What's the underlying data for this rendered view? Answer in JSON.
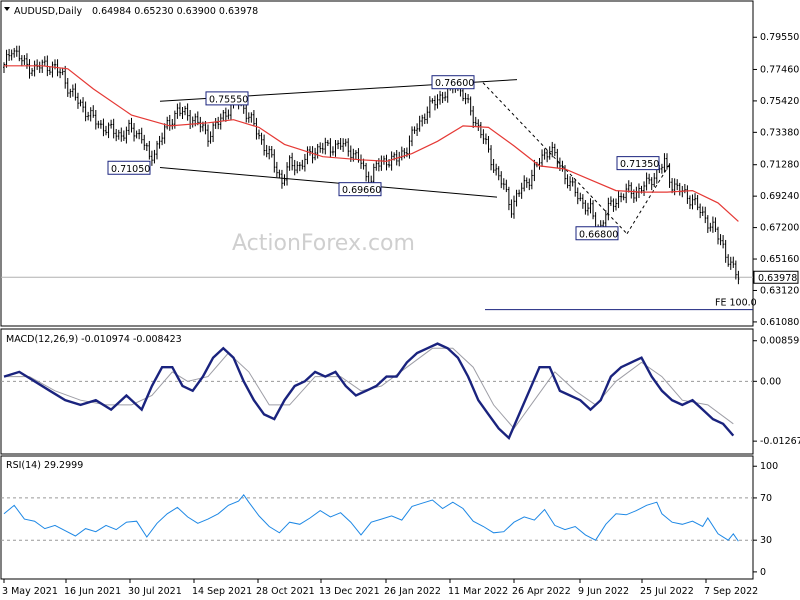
{
  "header": {
    "symbol": "AUDUSD,Daily",
    "ohlc": "0.64984 0.65230 0.63900 0.63978"
  },
  "watermark": "ActionForex.com",
  "colors": {
    "candles": "#000000",
    "ma": "#e53935",
    "macd": "#1a237e",
    "signal": "#9e9ea6",
    "rsi": "#1e88e5",
    "annotation": "#1a237e"
  },
  "chart_data": {
    "type": "candlestick",
    "x_ticks": [
      "3 May 2021",
      "16 Jun 2021",
      "30 Jul 2021",
      "14 Sep 2021",
      "28 Oct 2021",
      "13 Dec 2021",
      "26 Jan 2022",
      "11 Mar 2022",
      "26 Apr 2022",
      "9 Jun 2022",
      "25 Jul 2022",
      "7 Sep 2022"
    ],
    "price_ticks": [
      "0.79550",
      "0.77460",
      "0.75420",
      "0.73380",
      "0.71280",
      "0.69240",
      "0.67200",
      "0.65160",
      "0.63120",
      "0.61080"
    ],
    "ylim": [
      0.6088,
      0.8015
    ],
    "last_price": "0.63978",
    "price_path": [
      [
        0,
        0.776
      ],
      [
        3,
        0.789
      ],
      [
        8,
        0.778
      ],
      [
        12,
        0.775
      ],
      [
        16,
        0.778
      ],
      [
        20,
        0.775
      ],
      [
        23,
        0.771
      ],
      [
        26,
        0.76
      ],
      [
        30,
        0.752
      ],
      [
        34,
        0.744
      ],
      [
        38,
        0.738
      ],
      [
        42,
        0.735
      ],
      [
        46,
        0.732
      ],
      [
        50,
        0.736
      ],
      [
        54,
        0.731
      ],
      [
        57,
        0.716
      ],
      [
        60,
        0.725
      ],
      [
        64,
        0.738
      ],
      [
        68,
        0.748
      ],
      [
        72,
        0.745
      ],
      [
        76,
        0.74
      ],
      [
        80,
        0.732
      ],
      [
        84,
        0.74
      ],
      [
        88,
        0.749
      ],
      [
        91,
        0.755
      ],
      [
        94,
        0.75
      ],
      [
        98,
        0.738
      ],
      [
        102,
        0.725
      ],
      [
        106,
        0.713
      ],
      [
        109,
        0.702
      ],
      [
        112,
        0.713
      ],
      [
        116,
        0.712
      ],
      [
        120,
        0.72
      ],
      [
        124,
        0.724
      ],
      [
        128,
        0.724
      ],
      [
        132,
        0.726
      ],
      [
        136,
        0.722
      ],
      [
        140,
        0.714
      ],
      [
        143,
        0.7
      ],
      [
        146,
        0.712
      ],
      [
        150,
        0.716
      ],
      [
        154,
        0.716
      ],
      [
        158,
        0.724
      ],
      [
        162,
        0.738
      ],
      [
        166,
        0.748
      ],
      [
        170,
        0.756
      ],
      [
        174,
        0.76
      ],
      [
        177,
        0.766
      ],
      [
        180,
        0.758
      ],
      [
        184,
        0.744
      ],
      [
        188,
        0.73
      ],
      [
        192,
        0.712
      ],
      [
        196,
        0.698
      ],
      [
        199,
        0.685
      ],
      [
        202,
        0.695
      ],
      [
        206,
        0.704
      ],
      [
        210,
        0.715
      ],
      [
        214,
        0.724
      ],
      [
        218,
        0.712
      ],
      [
        222,
        0.7
      ],
      [
        226,
        0.69
      ],
      [
        230,
        0.683
      ],
      [
        233,
        0.668
      ],
      [
        236,
        0.682
      ],
      [
        240,
        0.69
      ],
      [
        244,
        0.695
      ],
      [
        248,
        0.695
      ],
      [
        252,
        0.7
      ],
      [
        256,
        0.708
      ],
      [
        259,
        0.714
      ],
      [
        262,
        0.7
      ],
      [
        266,
        0.695
      ],
      [
        270,
        0.69
      ],
      [
        274,
        0.68
      ],
      [
        278,
        0.672
      ],
      [
        282,
        0.66
      ],
      [
        285,
        0.647
      ],
      [
        288,
        0.64
      ]
    ],
    "ma_path": [
      [
        0,
        0.777
      ],
      [
        15,
        0.777
      ],
      [
        25,
        0.775
      ],
      [
        35,
        0.762
      ],
      [
        50,
        0.745
      ],
      [
        65,
        0.738
      ],
      [
        80,
        0.74
      ],
      [
        90,
        0.742
      ],
      [
        100,
        0.737
      ],
      [
        110,
        0.726
      ],
      [
        125,
        0.718
      ],
      [
        140,
        0.716
      ],
      [
        150,
        0.715
      ],
      [
        160,
        0.72
      ],
      [
        170,
        0.728
      ],
      [
        180,
        0.738
      ],
      [
        190,
        0.737
      ],
      [
        200,
        0.725
      ],
      [
        210,
        0.712
      ],
      [
        220,
        0.71
      ],
      [
        230,
        0.703
      ],
      [
        240,
        0.696
      ],
      [
        250,
        0.695
      ],
      [
        260,
        0.695
      ],
      [
        270,
        0.696
      ],
      [
        280,
        0.688
      ],
      [
        288,
        0.676
      ]
    ],
    "annotations": [
      {
        "label": "0.75550",
        "value": 0.7555
      },
      {
        "label": "0.76600",
        "value": 0.766
      },
      {
        "label": "0.71050",
        "value": 0.7105
      },
      {
        "label": "0.69660",
        "value": 0.6966
      },
      {
        "label": "0.71350",
        "value": 0.7135
      },
      {
        "label": "0.66800",
        "value": 0.668
      },
      {
        "label": "FE 100.0",
        "value": 0.6188
      }
    ],
    "macd": {
      "label": "MACD(12,26,9) -0.010974 -0.008423",
      "ticks": [
        "0.008596",
        "0.00",
        "-0.01267"
      ],
      "ylim": [
        -0.0137,
        0.0096
      ],
      "macd_path": [
        [
          0,
          0.001
        ],
        [
          6,
          0.002
        ],
        [
          12,
          0.0
        ],
        [
          18,
          -0.002
        ],
        [
          24,
          -0.004
        ],
        [
          30,
          -0.005
        ],
        [
          36,
          -0.004
        ],
        [
          42,
          -0.006
        ],
        [
          48,
          -0.003
        ],
        [
          54,
          -0.006
        ],
        [
          58,
          -0.001
        ],
        [
          62,
          0.003
        ],
        [
          66,
          0.003
        ],
        [
          70,
          -0.001
        ],
        [
          74,
          -0.002
        ],
        [
          78,
          0.001
        ],
        [
          82,
          0.005
        ],
        [
          86,
          0.007
        ],
        [
          90,
          0.005
        ],
        [
          94,
          0.0
        ],
        [
          98,
          -0.004
        ],
        [
          102,
          -0.007
        ],
        [
          106,
          -0.008
        ],
        [
          110,
          -0.004
        ],
        [
          114,
          -0.001
        ],
        [
          118,
          0.0
        ],
        [
          122,
          0.002
        ],
        [
          126,
          0.001
        ],
        [
          130,
          0.002
        ],
        [
          134,
          -0.001
        ],
        [
          138,
          -0.003
        ],
        [
          142,
          -0.002
        ],
        [
          146,
          -0.001
        ],
        [
          150,
          0.001
        ],
        [
          154,
          0.001
        ],
        [
          158,
          0.004
        ],
        [
          162,
          0.006
        ],
        [
          166,
          0.007
        ],
        [
          170,
          0.008
        ],
        [
          174,
          0.007
        ],
        [
          178,
          0.005
        ],
        [
          182,
          0.001
        ],
        [
          186,
          -0.004
        ],
        [
          190,
          -0.007
        ],
        [
          194,
          -0.01
        ],
        [
          198,
          -0.012
        ],
        [
          202,
          -0.007
        ],
        [
          206,
          -0.002
        ],
        [
          210,
          0.003
        ],
        [
          214,
          0.003
        ],
        [
          218,
          -0.002
        ],
        [
          222,
          -0.003
        ],
        [
          226,
          -0.004
        ],
        [
          230,
          -0.006
        ],
        [
          234,
          -0.004
        ],
        [
          238,
          0.001
        ],
        [
          242,
          0.003
        ],
        [
          246,
          0.004
        ],
        [
          250,
          0.005
        ],
        [
          254,
          0.001
        ],
        [
          258,
          -0.002
        ],
        [
          262,
          -0.004
        ],
        [
          266,
          -0.005
        ],
        [
          270,
          -0.004
        ],
        [
          274,
          -0.006
        ],
        [
          278,
          -0.008
        ],
        [
          282,
          -0.009
        ],
        [
          286,
          -0.0115
        ]
      ],
      "signal_path": [
        [
          0,
          0.001
        ],
        [
          10,
          0.001
        ],
        [
          20,
          -0.002
        ],
        [
          30,
          -0.004
        ],
        [
          40,
          -0.005
        ],
        [
          50,
          -0.005
        ],
        [
          58,
          -0.003
        ],
        [
          66,
          0.002
        ],
        [
          72,
          0.0
        ],
        [
          80,
          0.001
        ],
        [
          88,
          0.006
        ],
        [
          96,
          0.002
        ],
        [
          104,
          -0.005
        ],
        [
          112,
          -0.005
        ],
        [
          122,
          0.001
        ],
        [
          132,
          0.001
        ],
        [
          140,
          -0.002
        ],
        [
          148,
          -0.001
        ],
        [
          158,
          0.003
        ],
        [
          168,
          0.007
        ],
        [
          176,
          0.007
        ],
        [
          184,
          0.003
        ],
        [
          192,
          -0.005
        ],
        [
          200,
          -0.01
        ],
        [
          208,
          -0.004
        ],
        [
          216,
          0.002
        ],
        [
          224,
          -0.002
        ],
        [
          232,
          -0.005
        ],
        [
          240,
          0.0
        ],
        [
          250,
          0.004
        ],
        [
          258,
          0.001
        ],
        [
          266,
          -0.004
        ],
        [
          276,
          -0.005
        ],
        [
          286,
          -0.009
        ]
      ]
    },
    "rsi": {
      "label": "RSI(14) 29.2999",
      "ticks": [
        "100",
        "70",
        "30",
        "0"
      ],
      "ylim": [
        -2,
        104
      ],
      "levels": [
        70,
        30
      ],
      "path": [
        [
          0,
          55
        ],
        [
          4,
          63
        ],
        [
          8,
          50
        ],
        [
          12,
          48
        ],
        [
          16,
          41
        ],
        [
          20,
          44
        ],
        [
          24,
          39
        ],
        [
          28,
          34
        ],
        [
          32,
          41
        ],
        [
          36,
          38
        ],
        [
          40,
          44
        ],
        [
          44,
          40
        ],
        [
          48,
          47
        ],
        [
          52,
          48
        ],
        [
          56,
          33
        ],
        [
          60,
          46
        ],
        [
          64,
          55
        ],
        [
          68,
          61
        ],
        [
          72,
          52
        ],
        [
          76,
          46
        ],
        [
          80,
          50
        ],
        [
          84,
          55
        ],
        [
          88,
          63
        ],
        [
          92,
          67
        ],
        [
          94,
          73
        ],
        [
          96,
          66
        ],
        [
          100,
          53
        ],
        [
          104,
          43
        ],
        [
          108,
          37
        ],
        [
          112,
          47
        ],
        [
          116,
          45
        ],
        [
          120,
          51
        ],
        [
          124,
          58
        ],
        [
          128,
          52
        ],
        [
          132,
          56
        ],
        [
          136,
          47
        ],
        [
          140,
          35
        ],
        [
          144,
          47
        ],
        [
          148,
          50
        ],
        [
          152,
          53
        ],
        [
          156,
          49
        ],
        [
          160,
          62
        ],
        [
          164,
          65
        ],
        [
          168,
          68
        ],
        [
          172,
          60
        ],
        [
          176,
          66
        ],
        [
          180,
          60
        ],
        [
          184,
          48
        ],
        [
          188,
          43
        ],
        [
          192,
          37
        ],
        [
          196,
          38
        ],
        [
          200,
          47
        ],
        [
          204,
          52
        ],
        [
          208,
          49
        ],
        [
          212,
          59
        ],
        [
          216,
          44
        ],
        [
          220,
          40
        ],
        [
          224,
          43
        ],
        [
          228,
          35
        ],
        [
          232,
          30
        ],
        [
          236,
          45
        ],
        [
          240,
          55
        ],
        [
          244,
          54
        ],
        [
          248,
          58
        ],
        [
          252,
          63
        ],
        [
          256,
          66
        ],
        [
          258,
          55
        ],
        [
          262,
          47
        ],
        [
          266,
          45
        ],
        [
          270,
          48
        ],
        [
          274,
          43
        ],
        [
          276,
          51
        ],
        [
          280,
          36
        ],
        [
          284,
          30
        ],
        [
          286,
          36
        ],
        [
          288,
          29
        ]
      ]
    }
  }
}
